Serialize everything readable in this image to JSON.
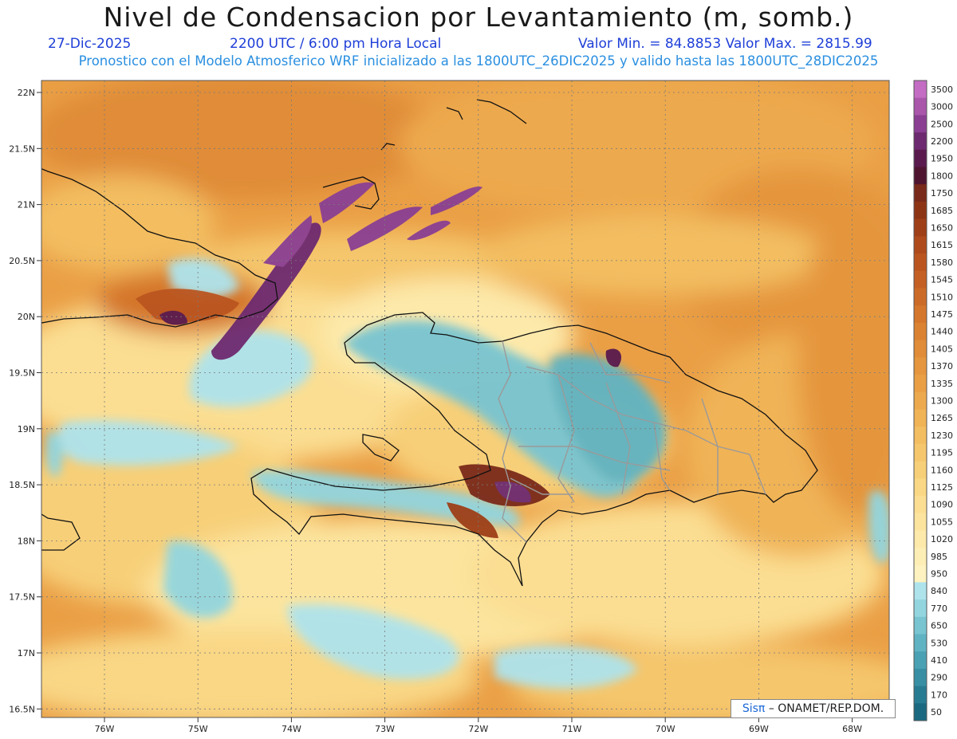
{
  "header": {
    "title": "Nivel de Condensacion por Levantamiento (m, somb.)",
    "date": "27-Dic-2025",
    "time": "2200 UTC / 6:00 pm Hora Local",
    "minmax": "Valor Min. = 84.8853  Valor Max. = 2815.99",
    "forecast": "Pronostico con el Modelo Atmosferico WRF inicializado a las 1800UTC_26DIC2025 y valido hasta las  1800UTC_28DIC2025"
  },
  "axes": {
    "lat_labels": [
      "22N",
      "21.5N",
      "21N",
      "20.5N",
      "20N",
      "19.5N",
      "19N",
      "18.5N",
      "18N",
      "17.5N",
      "17N",
      "16.5N"
    ],
    "lon_labels": [
      "76W",
      "75W",
      "74W",
      "73W",
      "72W",
      "71W",
      "70W",
      "69W",
      "68W"
    ]
  },
  "colorbar": {
    "levels": [
      "3500",
      "3000",
      "2500",
      "2200",
      "1950",
      "1800",
      "1750",
      "1685",
      "1650",
      "1615",
      "1580",
      "1545",
      "1510",
      "1475",
      "1440",
      "1405",
      "1370",
      "1335",
      "1300",
      "1265",
      "1230",
      "1195",
      "1160",
      "1125",
      "1090",
      "1055",
      "1020",
      "985",
      "950",
      "840",
      "770",
      "650",
      "530",
      "410",
      "290",
      "170",
      "50"
    ],
    "colors": [
      "#c46cc4",
      "#a956ab",
      "#8a3f93",
      "#6e2a70",
      "#5a1a4e",
      "#4f1530",
      "#7a2a1a",
      "#8d3415",
      "#9e3f18",
      "#ae4a1c",
      "#bb5520",
      "#c46024",
      "#cc6b28",
      "#d4762c",
      "#db8232",
      "#e08c38",
      "#e5963e",
      "#ea9f45",
      "#eda94d",
      "#f0b356",
      "#f3bd61",
      "#f5c66c",
      "#f7cf78",
      "#f9d785",
      "#fbde92",
      "#fce49e",
      "#fde9aa",
      "#fdeeb5",
      "#fef2c0",
      "#aee3ec",
      "#92d5df",
      "#78c4d1",
      "#60b3c2",
      "#4aa1b3",
      "#388fa3",
      "#287c92",
      "#1a6980"
    ]
  },
  "credit": {
    "brand": "Sisπ",
    "org": "– ONAMET/REP.DOM."
  }
}
